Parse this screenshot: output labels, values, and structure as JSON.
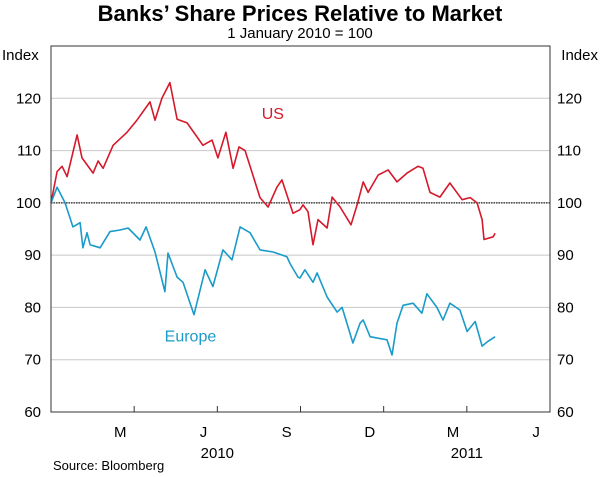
{
  "chart_data": {
    "type": "line",
    "title": "Banks’ Share Prices Relative to Market",
    "subtitle": "1 January 2010 = 100",
    "ylabel_left": "Index",
    "ylabel_right": "Index",
    "ylim": [
      60,
      130
    ],
    "yticks": [
      60,
      70,
      80,
      90,
      100,
      110,
      120
    ],
    "reference_line": 100,
    "x_unit": "months since 1 January 2010",
    "xlim": [
      0,
      18
    ],
    "quarter_ticks": [
      0,
      3,
      6,
      9,
      12,
      15,
      18
    ],
    "month_labels": [
      {
        "label": "M",
        "x": 2.5
      },
      {
        "label": "J",
        "x": 5.5
      },
      {
        "label": "S",
        "x": 8.5
      },
      {
        "label": "D",
        "x": 11.5
      },
      {
        "label": "M",
        "x": 14.5
      },
      {
        "label": "J",
        "x": 17.5
      }
    ],
    "year_labels": [
      {
        "label": "2010",
        "x": 6
      },
      {
        "label": "2011",
        "x": 15
      }
    ],
    "grid": true,
    "source": "Source: Bloomberg",
    "series": [
      {
        "name": "US",
        "color": "#d5192b",
        "label_at": [
          7.6,
          116
        ],
        "points": [
          [
            0,
            100
          ],
          [
            0.22,
            106
          ],
          [
            0.4,
            107
          ],
          [
            0.58,
            105
          ],
          [
            0.94,
            113
          ],
          [
            1.12,
            108.6
          ],
          [
            1.52,
            105.7
          ],
          [
            1.7,
            108
          ],
          [
            1.88,
            106.6
          ],
          [
            2.24,
            111
          ],
          [
            2.74,
            113.5
          ],
          [
            3.1,
            115.8
          ],
          [
            3.57,
            119.3
          ],
          [
            3.75,
            115.8
          ],
          [
            4.0,
            120
          ],
          [
            4.29,
            123
          ],
          [
            4.55,
            116
          ],
          [
            4.91,
            115.3
          ],
          [
            5.27,
            112.6
          ],
          [
            5.48,
            111
          ],
          [
            5.81,
            112
          ],
          [
            6.02,
            108.6
          ],
          [
            6.31,
            113.5
          ],
          [
            6.57,
            106.6
          ],
          [
            6.78,
            110.7
          ],
          [
            7.0,
            110
          ],
          [
            7.54,
            101
          ],
          [
            7.83,
            99.2
          ],
          [
            8.15,
            103
          ],
          [
            8.33,
            104.4
          ],
          [
            8.73,
            98
          ],
          [
            8.98,
            98.7
          ],
          [
            9.09,
            99.6
          ],
          [
            9.27,
            98.3
          ],
          [
            9.45,
            92
          ],
          [
            9.63,
            96.8
          ],
          [
            9.96,
            95.2
          ],
          [
            10.14,
            101.1
          ],
          [
            10.43,
            99.2
          ],
          [
            10.82,
            95.8
          ],
          [
            11.04,
            99.6
          ],
          [
            11.26,
            104
          ],
          [
            11.44,
            102
          ],
          [
            11.8,
            105.3
          ],
          [
            12.16,
            106.3
          ],
          [
            12.48,
            104
          ],
          [
            12.84,
            105.7
          ],
          [
            13.24,
            107
          ],
          [
            13.42,
            106.6
          ],
          [
            13.67,
            102
          ],
          [
            14.03,
            101.1
          ],
          [
            14.39,
            103.8
          ],
          [
            14.83,
            100.6
          ],
          [
            15.12,
            101
          ],
          [
            15.37,
            100
          ],
          [
            15.55,
            96.8
          ],
          [
            15.62,
            93
          ],
          [
            15.95,
            93.5
          ],
          [
            16.02,
            94.2
          ]
        ]
      },
      {
        "name": "Europe",
        "color": "#1a9bc9",
        "label_at": [
          4.1,
          73.5
        ],
        "points": [
          [
            0,
            100
          ],
          [
            0.22,
            103
          ],
          [
            0.51,
            100
          ],
          [
            0.79,
            95.4
          ],
          [
            1.05,
            96.2
          ],
          [
            1.15,
            91.4
          ],
          [
            1.3,
            94.3
          ],
          [
            1.41,
            92
          ],
          [
            1.77,
            91.4
          ],
          [
            2.13,
            94.5
          ],
          [
            2.49,
            94.8
          ],
          [
            2.78,
            95.2
          ],
          [
            3.21,
            92.9
          ],
          [
            3.43,
            95.4
          ],
          [
            3.75,
            90.6
          ],
          [
            4.11,
            83
          ],
          [
            4.22,
            90.4
          ],
          [
            4.55,
            85.8
          ],
          [
            4.76,
            84.8
          ],
          [
            5.16,
            78.6
          ],
          [
            5.56,
            87.2
          ],
          [
            5.84,
            84
          ],
          [
            6.2,
            91
          ],
          [
            6.53,
            89.1
          ],
          [
            6.82,
            95.4
          ],
          [
            7.18,
            94.3
          ],
          [
            7.54,
            91
          ],
          [
            8.01,
            90.6
          ],
          [
            8.51,
            89.7
          ],
          [
            8.62,
            88.4
          ],
          [
            8.91,
            85.8
          ],
          [
            8.98,
            85.6
          ],
          [
            9.16,
            87.2
          ],
          [
            9.45,
            84.8
          ],
          [
            9.6,
            86.6
          ],
          [
            9.96,
            82
          ],
          [
            10.32,
            79.1
          ],
          [
            10.5,
            80
          ],
          [
            10.89,
            73.2
          ],
          [
            11.15,
            77
          ],
          [
            11.26,
            77.6
          ],
          [
            11.51,
            74.4
          ],
          [
            12.12,
            73.8
          ],
          [
            12.3,
            70.9
          ],
          [
            12.48,
            77
          ],
          [
            12.7,
            80.4
          ],
          [
            13.06,
            80.8
          ],
          [
            13.38,
            78.9
          ],
          [
            13.56,
            82.6
          ],
          [
            13.92,
            80
          ],
          [
            14.14,
            77.6
          ],
          [
            14.39,
            80.8
          ],
          [
            14.75,
            79.5
          ],
          [
            15.01,
            75.4
          ],
          [
            15.3,
            77.3
          ],
          [
            15.55,
            72.6
          ],
          [
            15.76,
            73.5
          ],
          [
            16.02,
            74.4
          ]
        ]
      }
    ]
  }
}
